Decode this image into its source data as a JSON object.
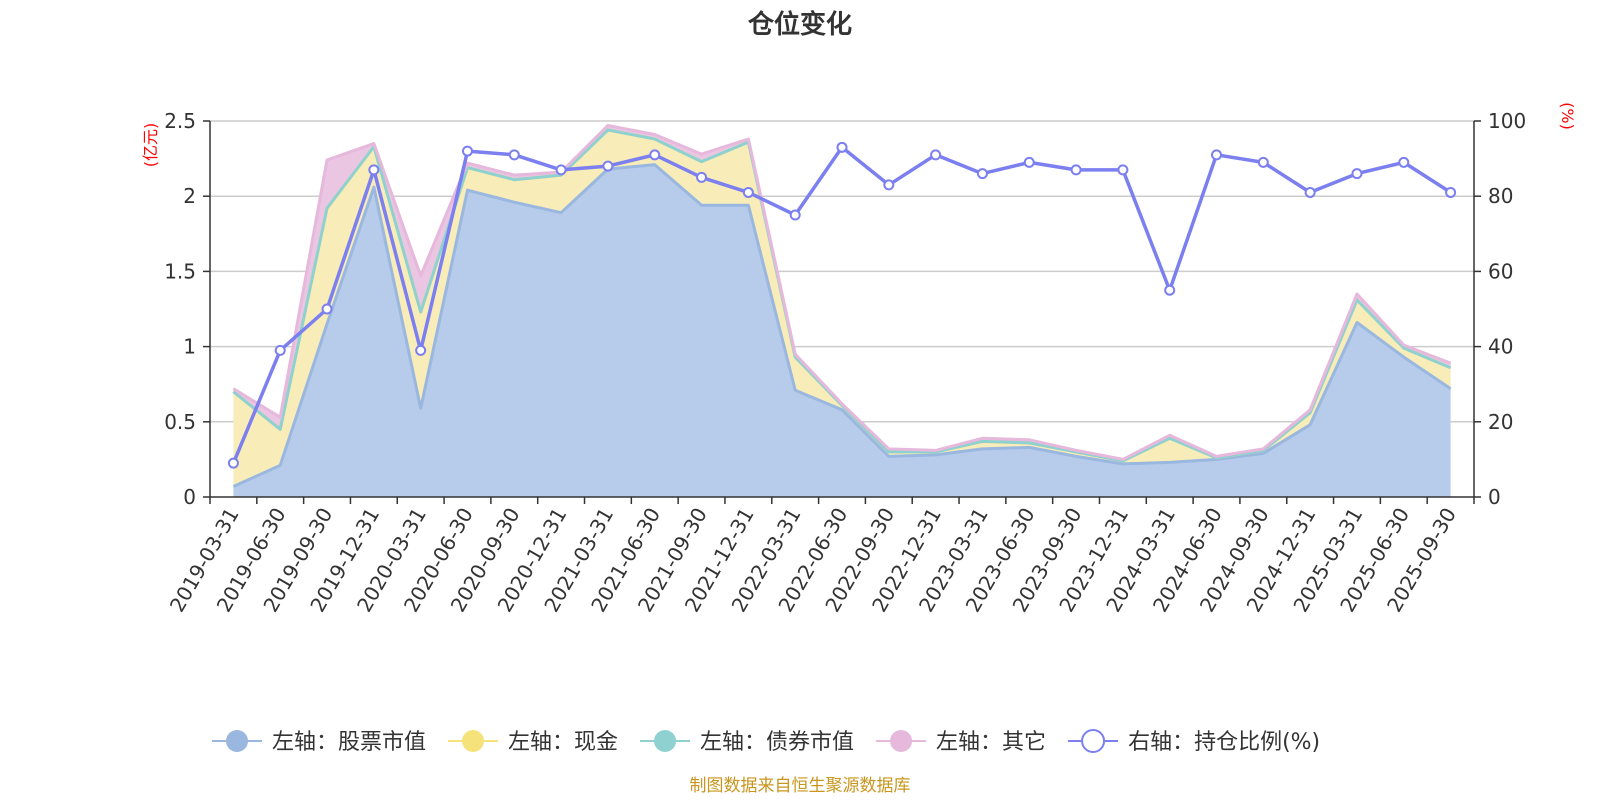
{
  "chart_data": {
    "type": "area",
    "title": "仓位变化",
    "left_unit": "(亿元)",
    "right_unit": "(%)",
    "categories": [
      "2019-03-31",
      "2019-06-30",
      "2019-09-30",
      "2019-12-31",
      "2020-03-31",
      "2020-06-30",
      "2020-09-30",
      "2020-12-31",
      "2021-03-31",
      "2021-06-30",
      "2021-09-30",
      "2021-12-31",
      "2022-03-31",
      "2022-06-30",
      "2022-09-30",
      "2022-12-31",
      "2023-03-31",
      "2023-06-30",
      "2023-09-30",
      "2023-12-31",
      "2024-03-31",
      "2024-06-30",
      "2024-09-30",
      "2024-12-31",
      "2025-03-31",
      "2025-06-30",
      "2025-09-30"
    ],
    "y_left": {
      "min": 0,
      "max": 2.5,
      "ticks": [
        "0",
        "0.5",
        "1",
        "1.5",
        "2",
        "2.5"
      ],
      "tick_values": [
        0,
        0.5,
        1,
        1.5,
        2,
        2.5
      ]
    },
    "y_right": {
      "min": 0,
      "max": 100,
      "ticks": [
        "0",
        "20",
        "40",
        "60",
        "80",
        "100"
      ],
      "tick_values": [
        0,
        20,
        40,
        60,
        80,
        100
      ]
    },
    "grid": true,
    "legend_position": "bottom",
    "series": [
      {
        "name": "左轴：股票市值",
        "axis": "left",
        "stack": true,
        "color": "#9ab7e0",
        "fill": "#b7cbea",
        "values": [
          0.07,
          0.21,
          1.15,
          2.06,
          0.59,
          2.04,
          1.96,
          1.89,
          2.18,
          2.21,
          1.94,
          1.94,
          0.71,
          0.58,
          0.27,
          0.28,
          0.32,
          0.33,
          0.27,
          0.22,
          0.23,
          0.25,
          0.29,
          0.48,
          1.16,
          0.93,
          0.72
        ]
      },
      {
        "name": "左轴：现金",
        "axis": "left",
        "stack": true,
        "color": "#f5e27a",
        "fill": "#f8ecb8",
        "values": [
          0.63,
          0.24,
          0.77,
          0.27,
          0.64,
          0.15,
          0.15,
          0.25,
          0.26,
          0.17,
          0.29,
          0.42,
          0.22,
          0.03,
          0.03,
          0.02,
          0.05,
          0.03,
          0.03,
          0.02,
          0.16,
          0.01,
          0.02,
          0.08,
          0.15,
          0.06,
          0.14
        ]
      },
      {
        "name": "左轴：债券市值",
        "axis": "left",
        "stack": true,
        "color": "#8fd1d0",
        "fill": "#b7e3e2",
        "values": [
          0,
          0,
          0,
          0,
          0,
          0,
          0,
          0,
          0,
          0,
          0,
          0,
          0,
          0,
          0,
          0,
          0,
          0,
          0,
          0,
          0,
          0,
          0,
          0,
          0,
          0,
          0
        ]
      },
      {
        "name": "左轴：其它",
        "axis": "left",
        "stack": true,
        "color": "#e6b8dc",
        "fill": "#ebc6e3",
        "values": [
          0.02,
          0.08,
          0.32,
          0.02,
          0.24,
          0.03,
          0.03,
          0.02,
          0.03,
          0.03,
          0.05,
          0.02,
          0.02,
          0.01,
          0.02,
          0.01,
          0.02,
          0.02,
          0.01,
          0.01,
          0.02,
          0.01,
          0.01,
          0.02,
          0.04,
          0.02,
          0.03
        ]
      },
      {
        "name": "右轴：持仓比例(%)",
        "axis": "right",
        "stack": false,
        "color": "#7b7ff0",
        "values": [
          9,
          39,
          50,
          87,
          39,
          92,
          91,
          87,
          88,
          91,
          85,
          81,
          75,
          93,
          83,
          91,
          86,
          89,
          87,
          87,
          55,
          91,
          89,
          81,
          86,
          89,
          81
        ]
      }
    ],
    "source": "制图数据来自恒生聚源数据库"
  }
}
